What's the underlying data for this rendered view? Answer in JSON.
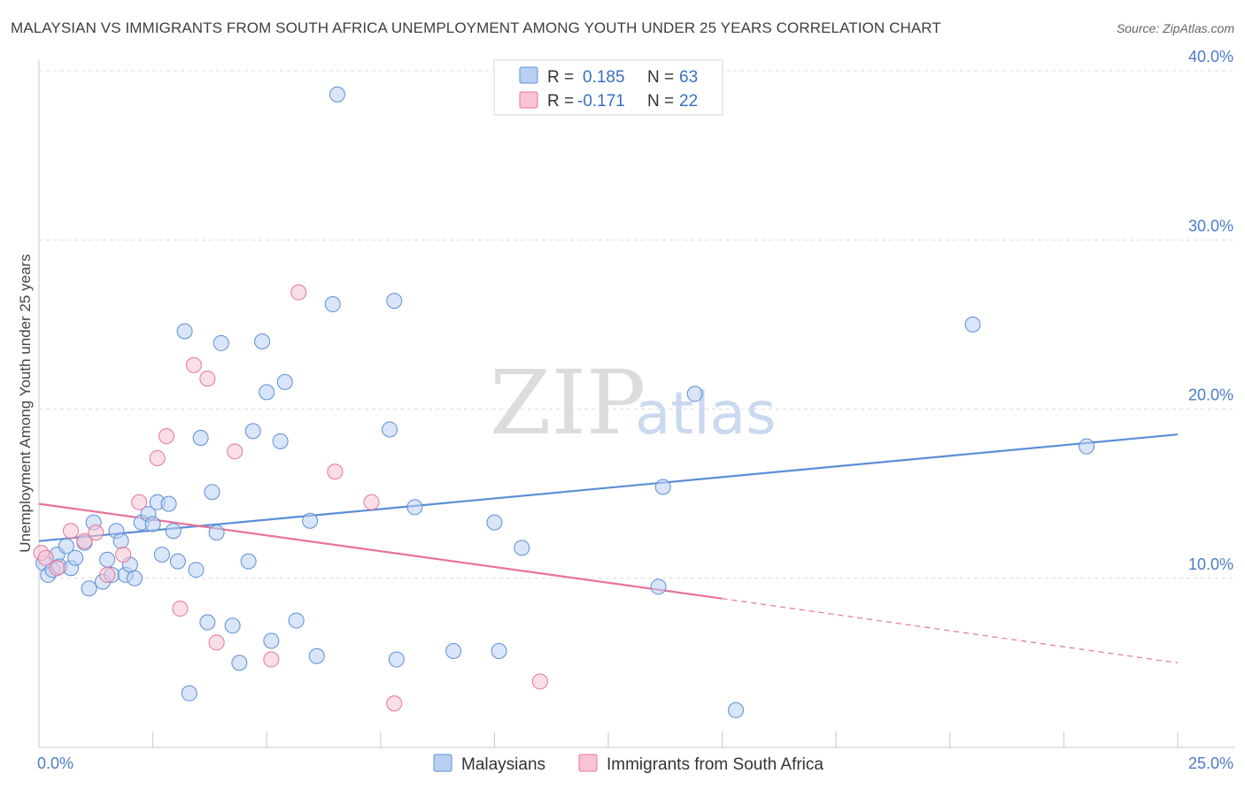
{
  "chart_data": {
    "type": "scatter",
    "title": "MALAYSIAN VS IMMIGRANTS FROM SOUTH AFRICA UNEMPLOYMENT AMONG YOUTH UNDER 25 YEARS CORRELATION CHART",
    "source": "Source: ZipAtlas.com",
    "ylabel": "Unemployment Among Youth under 25 years",
    "xlabel": "",
    "xlim": [
      0,
      25
    ],
    "ylim": [
      0,
      40
    ],
    "x_tick_labels": [
      "0.0%",
      "25.0%"
    ],
    "y_ticks": [
      10,
      20,
      30,
      40
    ],
    "y_tick_labels": [
      "10.0%",
      "20.0%",
      "30.0%",
      "40.0%"
    ],
    "watermark": {
      "zip": "ZIP",
      "atlas": "atlas"
    },
    "legend": {
      "placement": "top-center",
      "entries": [
        {
          "r_label": "R = ",
          "r_value": "0.185",
          "n_label": "N = ",
          "n_value": "63"
        },
        {
          "r_label": "R = ",
          "r_value": "-0.171",
          "n_label": "N = ",
          "n_value": "22"
        }
      ]
    },
    "bottom_legend": [
      "Malaysians",
      "Immigrants from South Africa"
    ],
    "series": [
      {
        "name": "Malaysians",
        "color": "#5b8fd6",
        "fill": "#b9d0f3",
        "trend": {
          "x0": 0,
          "y0": 12.2,
          "x1": 25,
          "y1": 18.5
        },
        "points": [
          [
            0.1,
            10.9
          ],
          [
            0.2,
            10.2
          ],
          [
            0.3,
            10.5
          ],
          [
            0.4,
            11.4
          ],
          [
            0.45,
            10.7
          ],
          [
            0.6,
            11.9
          ],
          [
            0.7,
            10.6
          ],
          [
            0.8,
            11.2
          ],
          [
            1.0,
            12.1
          ],
          [
            1.1,
            9.4
          ],
          [
            1.2,
            13.3
          ],
          [
            1.4,
            9.8
          ],
          [
            1.5,
            11.1
          ],
          [
            1.6,
            10.2
          ],
          [
            1.7,
            12.8
          ],
          [
            1.8,
            12.2
          ],
          [
            1.9,
            10.2
          ],
          [
            2.0,
            10.8
          ],
          [
            2.1,
            10.0
          ],
          [
            2.25,
            13.3
          ],
          [
            2.4,
            13.8
          ],
          [
            2.5,
            13.2
          ],
          [
            2.6,
            14.5
          ],
          [
            2.7,
            11.4
          ],
          [
            2.85,
            14.4
          ],
          [
            2.95,
            12.8
          ],
          [
            3.05,
            11.0
          ],
          [
            3.2,
            24.6
          ],
          [
            3.3,
            3.2
          ],
          [
            3.45,
            10.5
          ],
          [
            3.55,
            18.3
          ],
          [
            3.7,
            7.4
          ],
          [
            3.8,
            15.1
          ],
          [
            3.9,
            12.7
          ],
          [
            4.0,
            23.9
          ],
          [
            4.25,
            7.2
          ],
          [
            4.4,
            5.0
          ],
          [
            4.6,
            11.0
          ],
          [
            4.7,
            18.7
          ],
          [
            4.9,
            24.0
          ],
          [
            5.0,
            21.0
          ],
          [
            5.1,
            6.3
          ],
          [
            5.3,
            18.1
          ],
          [
            5.4,
            21.6
          ],
          [
            5.65,
            7.5
          ],
          [
            5.95,
            13.4
          ],
          [
            6.1,
            5.4
          ],
          [
            6.45,
            26.2
          ],
          [
            6.55,
            38.6
          ],
          [
            7.7,
            18.8
          ],
          [
            7.8,
            26.4
          ],
          [
            7.85,
            5.2
          ],
          [
            8.25,
            14.2
          ],
          [
            9.1,
            5.7
          ],
          [
            10.0,
            13.3
          ],
          [
            10.1,
            5.7
          ],
          [
            10.6,
            11.8
          ],
          [
            13.6,
            9.5
          ],
          [
            13.7,
            15.4
          ],
          [
            14.4,
            20.9
          ],
          [
            15.3,
            2.2
          ],
          [
            20.5,
            25.0
          ],
          [
            23.0,
            17.8
          ]
        ]
      },
      {
        "name": "Immigrants from South Africa",
        "color": "#e8739b",
        "fill": "#f8c4d4",
        "trend": {
          "x0": 0,
          "y0": 14.4,
          "x1": 15.0,
          "y1": 8.8,
          "dash_x1": 25,
          "dash_y1": 5.0
        },
        "points": [
          [
            0.05,
            11.5
          ],
          [
            0.15,
            11.2
          ],
          [
            0.4,
            10.6
          ],
          [
            0.7,
            12.8
          ],
          [
            1.0,
            12.2
          ],
          [
            1.25,
            12.7
          ],
          [
            1.5,
            10.2
          ],
          [
            1.85,
            11.4
          ],
          [
            2.2,
            14.5
          ],
          [
            2.6,
            17.1
          ],
          [
            2.8,
            18.4
          ],
          [
            3.1,
            8.2
          ],
          [
            3.4,
            22.6
          ],
          [
            3.7,
            21.8
          ],
          [
            3.9,
            6.2
          ],
          [
            4.3,
            17.5
          ],
          [
            5.1,
            5.2
          ],
          [
            5.7,
            26.9
          ],
          [
            6.5,
            16.3
          ],
          [
            7.3,
            14.5
          ],
          [
            7.8,
            2.6
          ],
          [
            11.0,
            3.9
          ]
        ]
      }
    ]
  }
}
